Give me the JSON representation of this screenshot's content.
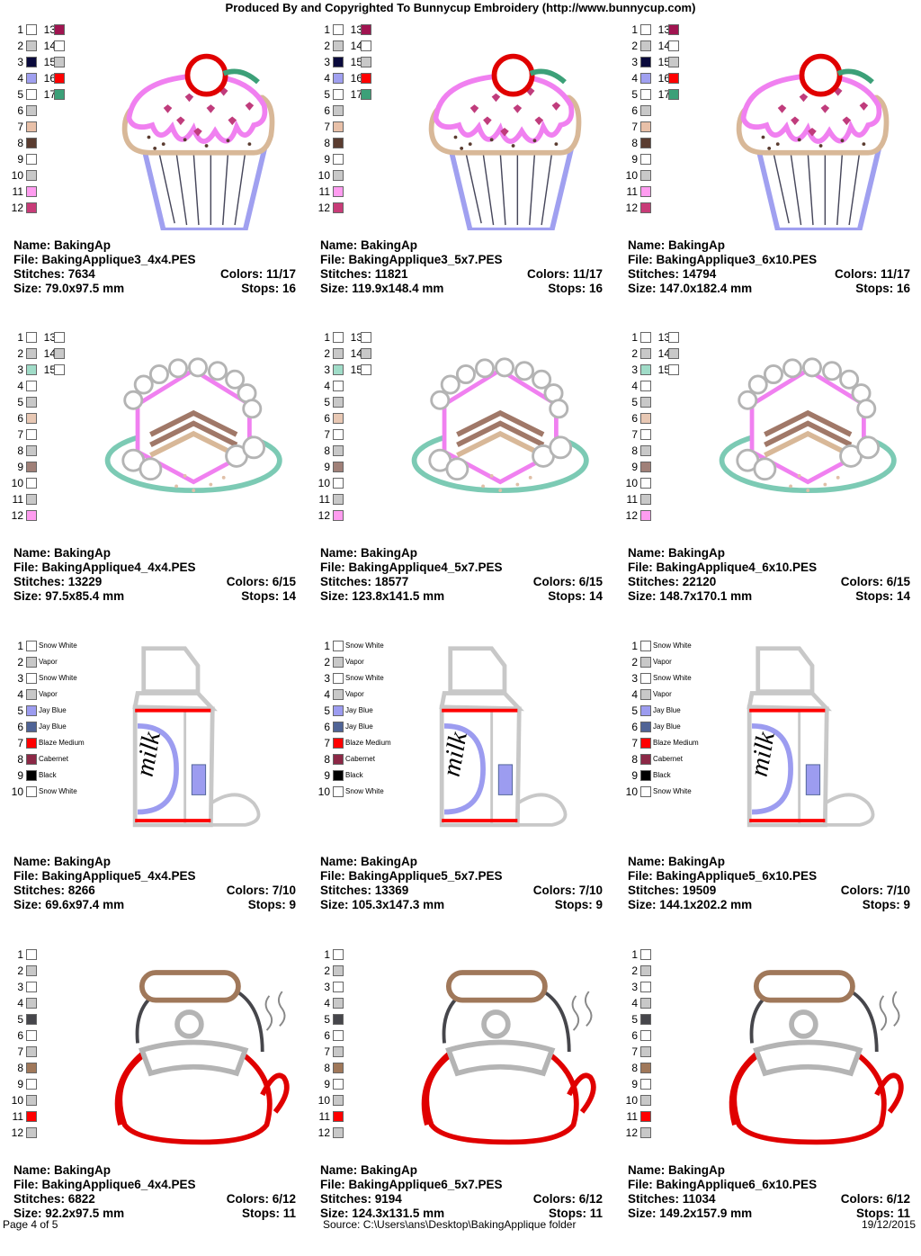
{
  "header": "Produced By and Copyrighted To Bunnycup Embroidery (http://www.bunnycup.com)",
  "footer": {
    "page": "Page 4 of 5",
    "source": "Source: C:\\Users\\ans\\Desktop\\BakingApplique folder",
    "date": "19/12/2015"
  },
  "rows": [
    {
      "art": "cupcake",
      "designs": [
        {
          "name": "Name: BakingAp",
          "file": "File: BakingApplique3_4x4.PES",
          "stitches": "Stitches: 7634",
          "colors": "Colors: 11/17",
          "size": "Size: 79.0x97.5 mm",
          "stops": "Stops: 16"
        },
        {
          "name": "Name: BakingAp",
          "file": "File: BakingApplique3_5x7.PES",
          "stitches": "Stitches: 11821",
          "colors": "Colors: 11/17",
          "size": "Size: 119.9x148.4 mm",
          "stops": "Stops: 16"
        },
        {
          "name": "Name: BakingAp",
          "file": "File: BakingApplique3_6x10.PES",
          "stitches": "Stitches: 14794",
          "colors": "Colors: 11/17",
          "size": "Size: 147.0x182.4 mm",
          "stops": "Stops: 16"
        }
      ]
    },
    {
      "art": "cake",
      "designs": [
        {
          "name": "Name: BakingAp",
          "file": "File: BakingApplique4_4x4.PES",
          "stitches": "Stitches: 13229",
          "colors": "Colors: 6/15",
          "size": "Size: 97.5x85.4 mm",
          "stops": "Stops: 14"
        },
        {
          "name": "Name: BakingAp",
          "file": "File: BakingApplique4_5x7.PES",
          "stitches": "Stitches: 18577",
          "colors": "Colors: 6/15",
          "size": "Size: 123.8x141.5 mm",
          "stops": "Stops: 14"
        },
        {
          "name": "Name: BakingAp",
          "file": "File: BakingApplique4_6x10.PES",
          "stitches": "Stitches: 22120",
          "colors": "Colors: 6/15",
          "size": "Size: 148.7x170.1 mm",
          "stops": "Stops: 14"
        }
      ]
    },
    {
      "art": "milk",
      "designs": [
        {
          "name": "Name: BakingAp",
          "file": "File: BakingApplique5_4x4.PES",
          "stitches": "Stitches: 8266",
          "colors": "Colors: 7/10",
          "size": "Size: 69.6x97.4 mm",
          "stops": "Stops: 9"
        },
        {
          "name": "Name: BakingAp",
          "file": "File: BakingApplique5_5x7.PES",
          "stitches": "Stitches: 13369",
          "colors": "Colors: 7/10",
          "size": "Size: 105.3x147.3 mm",
          "stops": "Stops: 9"
        },
        {
          "name": "Name: BakingAp",
          "file": "File: BakingApplique5_6x10.PES",
          "stitches": "Stitches: 19509",
          "colors": "Colors: 7/10",
          "size": "Size: 144.1x202.2 mm",
          "stops": "Stops: 9"
        }
      ]
    },
    {
      "art": "kettle",
      "designs": [
        {
          "name": "Name: BakingAp",
          "file": "File: BakingApplique6_4x4.PES",
          "stitches": "Stitches: 6822",
          "colors": "Colors: 6/12",
          "size": "Size: 92.2x97.5 mm",
          "stops": "Stops: 11"
        },
        {
          "name": "Name: BakingAp",
          "file": "File: BakingApplique6_5x7.PES",
          "stitches": "Stitches: 9194",
          "colors": "Colors: 6/12",
          "size": "Size: 124.3x131.5 mm",
          "stops": "Stops: 11"
        },
        {
          "name": "Name: BakingAp",
          "file": "File: BakingApplique6_6x10.PES",
          "stitches": "Stitches: 11034",
          "colors": "Colors: 6/12",
          "size": "Size: 149.2x157.9 mm",
          "stops": "Stops: 11"
        }
      ]
    }
  ],
  "palettes": {
    "cupcake": {
      "left": [
        {
          "num": "1",
          "color": "#ffffff"
        },
        {
          "num": "2",
          "color": "#c8c8c8"
        },
        {
          "num": "3",
          "color": "#0a0a3c"
        },
        {
          "num": "4",
          "color": "#a0a0f0"
        },
        {
          "num": "5",
          "color": "#ffffff"
        },
        {
          "num": "6",
          "color": "#c8c8c8"
        },
        {
          "num": "7",
          "color": "#e8c0a8"
        },
        {
          "num": "8",
          "color": "#5a3c30"
        },
        {
          "num": "9",
          "color": "#ffffff"
        },
        {
          "num": "10",
          "color": "#c8c8c8"
        },
        {
          "num": "11",
          "color": "#ff9cf0"
        },
        {
          "num": "12",
          "color": "#c83c78"
        }
      ],
      "right": [
        {
          "num": "13",
          "color": "#a01450"
        },
        {
          "num": "14",
          "color": "#ffffff"
        },
        {
          "num": "15",
          "color": "#c8c8c8"
        },
        {
          "num": "16",
          "color": "#ff0000"
        },
        {
          "num": "17",
          "color": "#3ca078"
        }
      ]
    },
    "cake": {
      "left": [
        {
          "num": "1",
          "color": "#ffffff"
        },
        {
          "num": "2",
          "color": "#c8c8c8"
        },
        {
          "num": "3",
          "color": "#a0dcc8"
        },
        {
          "num": "4",
          "color": "#ffffff"
        },
        {
          "num": "5",
          "color": "#c8c8c8"
        },
        {
          "num": "6",
          "color": "#e8c8b4"
        },
        {
          "num": "7",
          "color": "#ffffff"
        },
        {
          "num": "8",
          "color": "#c8c8c8"
        },
        {
          "num": "9",
          "color": "#a08078"
        },
        {
          "num": "10",
          "color": "#ffffff"
        },
        {
          "num": "11",
          "color": "#c8c8c8"
        },
        {
          "num": "12",
          "color": "#ff9cf0"
        }
      ],
      "right": [
        {
          "num": "13",
          "color": "#ffffff"
        },
        {
          "num": "14",
          "color": "#c8c8c8"
        },
        {
          "num": "15",
          "color": "#ffffff"
        }
      ]
    },
    "milk": {
      "left": [
        {
          "num": "1",
          "color": "#ffffff",
          "label": "Snow White"
        },
        {
          "num": "2",
          "color": "#c8c8c8",
          "label": "Vapor"
        },
        {
          "num": "3",
          "color": "#ffffff",
          "label": "Snow White"
        },
        {
          "num": "4",
          "color": "#c8c8c8",
          "label": "Vapor"
        },
        {
          "num": "5",
          "color": "#9c9cf0",
          "label": "Jay Blue"
        },
        {
          "num": "6",
          "color": "#506496",
          "label": "Jay Blue"
        },
        {
          "num": "7",
          "color": "#ff0000",
          "label": "Blaze Medium"
        },
        {
          "num": "8",
          "color": "#8c2846",
          "label": "Cabernet"
        },
        {
          "num": "9",
          "color": "#000000",
          "label": "Black"
        },
        {
          "num": "10",
          "color": "#ffffff",
          "label": "Snow White"
        }
      ],
      "right": []
    },
    "kettle": {
      "left": [
        {
          "num": "1",
          "color": "#ffffff"
        },
        {
          "num": "2",
          "color": "#c8c8c8"
        },
        {
          "num": "3",
          "color": "#ffffff"
        },
        {
          "num": "4",
          "color": "#c8c8c8"
        },
        {
          "num": "5",
          "color": "#46464b"
        },
        {
          "num": "6",
          "color": "#ffffff"
        },
        {
          "num": "7",
          "color": "#c8c8c8"
        },
        {
          "num": "8",
          "color": "#a0785a"
        },
        {
          "num": "9",
          "color": "#ffffff"
        },
        {
          "num": "10",
          "color": "#c8c8c8"
        },
        {
          "num": "11",
          "color": "#ff0000"
        },
        {
          "num": "12",
          "color": "#c8c8c8"
        }
      ],
      "right": []
    }
  }
}
